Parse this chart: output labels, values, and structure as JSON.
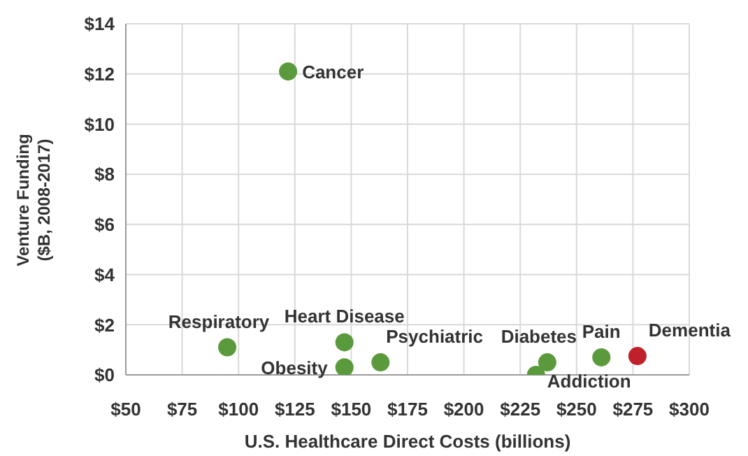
{
  "chart_data": {
    "type": "scatter",
    "xlabel": "U.S. Healthcare Direct Costs (billions)",
    "ylabel": "Venture Funding ($B, 2008-2017)",
    "xlim": [
      50,
      300
    ],
    "xticks": [
      {
        "value": 50,
        "label": "$50"
      },
      {
        "value": 75,
        "label": "$75"
      },
      {
        "value": 100,
        "label": "$100"
      },
      {
        "value": 125,
        "label": "$125"
      },
      {
        "value": 150,
        "label": "$150"
      },
      {
        "value": 175,
        "label": "$175"
      },
      {
        "value": 200,
        "label": "$200"
      },
      {
        "value": 225,
        "label": "$225"
      },
      {
        "value": 250,
        "label": "$250"
      },
      {
        "value": 275,
        "label": "$275"
      },
      {
        "value": 300,
        "label": "$300"
      }
    ],
    "ylim": [
      0,
      14
    ],
    "yticks": [
      {
        "value": 0,
        "label": "$0"
      },
      {
        "value": 2,
        "label": "$2"
      },
      {
        "value": 4,
        "label": "$4"
      },
      {
        "value": 6,
        "label": "$6"
      },
      {
        "value": 8,
        "label": "$8"
      },
      {
        "value": 10,
        "label": "$10"
      },
      {
        "value": 12,
        "label": "$12"
      },
      {
        "value": 14,
        "label": "$14"
      }
    ],
    "grid": true,
    "marker": "circle",
    "series": [
      {
        "name": "Cancer",
        "color": "#5b9a3c",
        "x": [
          122
        ],
        "values": [
          12.1
        ]
      },
      {
        "name": "Respiratory",
        "color": "#5b9a3c",
        "x": [
          95
        ],
        "values": [
          1.1
        ]
      },
      {
        "name": "Heart Disease",
        "color": "#5b9a3c",
        "x": [
          147
        ],
        "values": [
          1.3
        ]
      },
      {
        "name": "Obesity",
        "color": "#5b9a3c",
        "x": [
          147
        ],
        "values": [
          0.3
        ]
      },
      {
        "name": "Psychiatric",
        "color": "#5b9a3c",
        "x": [
          163
        ],
        "values": [
          0.5
        ]
      },
      {
        "name": "Diabetes",
        "color": "#5b9a3c",
        "x": [
          237
        ],
        "values": [
          0.5
        ]
      },
      {
        "name": "Addiction",
        "color": "#5b9a3c",
        "x": [
          232
        ],
        "values": [
          0
        ]
      },
      {
        "name": "Pain",
        "color": "#5b9a3c",
        "x": [
          261
        ],
        "values": [
          0.7
        ]
      },
      {
        "name": "Dementia",
        "color": "#c0202a",
        "x": [
          277
        ],
        "values": [
          0.75
        ]
      }
    ]
  }
}
